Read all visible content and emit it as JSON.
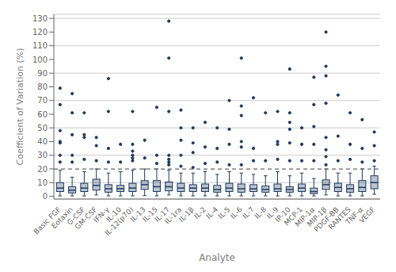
{
  "chart_data": {
    "type": "box",
    "xlabel": "Analyte",
    "ylabel": "Coefficient of Variation (%)",
    "categories": [
      "Basic FGF",
      "Eotaxin",
      "G-CSF",
      "GM-CSF",
      "IFN-γ",
      "IL-10",
      "IL-12(p70)",
      "IL-13",
      "IL-15",
      "IL-17",
      "IL-1ra",
      "IL-1β",
      "IL-2",
      "IL-4",
      "IL-5",
      "IL-6",
      "IL-7",
      "IL-8",
      "IL-9",
      "IP-10",
      "MCP-1",
      "MIP-1α",
      "MIP-1β",
      "PDGF-BB",
      "RANTES",
      "TNF-α",
      "VEGF"
    ],
    "q1": [
      3.5,
      2.5,
      3.5,
      4.5,
      3.0,
      3.5,
      3.5,
      5.0,
      3.5,
      4.0,
      3.5,
      3.5,
      3.5,
      3.0,
      3.5,
      3.0,
      3.5,
      3.0,
      3.5,
      3.0,
      3.5,
      2.0,
      5.0,
      3.5,
      3.0,
      3.5,
      5.5
    ],
    "median": [
      6.0,
      4.5,
      6.0,
      8.0,
      5.5,
      5.5,
      6.0,
      8.5,
      7.0,
      7.0,
      6.0,
      6.0,
      6.0,
      5.0,
      6.0,
      5.5,
      5.5,
      5.0,
      5.5,
      5.0,
      6.0,
      3.5,
      8.5,
      6.5,
      5.5,
      6.5,
      10.0
    ],
    "q3": [
      10.0,
      7.0,
      9.5,
      12.5,
      8.5,
      8.0,
      9.5,
      11.5,
      11.5,
      10.5,
      9.5,
      8.5,
      9.0,
      8.0,
      9.5,
      9.0,
      8.5,
      7.5,
      9.0,
      7.0,
      9.0,
      6.0,
      12.0,
      9.5,
      8.5,
      11.5,
      15.0
    ],
    "whislo": [
      0.3,
      0.3,
      0.3,
      1.0,
      0.3,
      0.3,
      0.3,
      0.5,
      0.3,
      1.0,
      0.3,
      0.3,
      0.3,
      0.3,
      0.3,
      0.3,
      0.3,
      0.3,
      0.3,
      0.3,
      0.3,
      0.3,
      1.0,
      0.3,
      0.3,
      0.3,
      1.5
    ],
    "whishi": [
      19.0,
      14.0,
      18.0,
      20.0,
      17.0,
      18.0,
      19.0,
      20.0,
      20.0,
      19.0,
      17.0,
      17.0,
      18.0,
      16.0,
      18.0,
      17.0,
      16.0,
      15.0,
      18.0,
      15.0,
      17.0,
      13.0,
      20.0,
      17.0,
      17.0,
      20.0,
      22.0
    ],
    "fliers": [
      [
        25,
        30,
        39,
        40,
        48,
        67,
        79
      ],
      [
        25,
        30,
        45,
        61,
        75
      ],
      [
        27,
        43,
        45,
        61
      ],
      [
        26,
        37,
        43
      ],
      [
        25,
        35,
        62,
        86
      ],
      [
        25,
        38
      ],
      [
        26,
        28,
        30,
        33,
        38,
        62
      ],
      [
        28,
        41
      ],
      [
        24,
        30,
        65
      ],
      [
        23,
        25,
        27,
        30,
        62,
        101,
        128
      ],
      [
        22,
        30,
        41,
        50,
        63
      ],
      [
        21,
        32,
        39,
        50
      ],
      [
        24,
        36,
        54
      ],
      [
        25,
        35,
        50
      ],
      [
        23,
        38,
        49,
        70
      ],
      [
        23,
        36,
        40,
        59,
        66,
        101
      ],
      [
        26,
        35,
        72
      ],
      [
        26,
        61
      ],
      [
        27,
        38,
        40,
        62
      ],
      [
        26,
        39,
        49,
        54,
        61,
        93
      ],
      [
        26,
        38,
        50
      ],
      [
        26,
        38,
        51,
        67,
        87
      ],
      [
        23,
        29,
        34,
        43,
        68,
        88,
        95,
        120
      ],
      [
        26,
        44,
        74
      ],
      [
        27,
        38,
        61
      ],
      [
        25,
        35,
        56
      ],
      [
        26,
        37,
        47
      ]
    ],
    "color": "#1e3a5f",
    "ylim": [
      -2,
      133
    ],
    "yticks": [
      0,
      10,
      20,
      30,
      40,
      50,
      60,
      70,
      80,
      90,
      100,
      110,
      120,
      130
    ],
    "grid": true,
    "reference_line": {
      "y": 20,
      "color": "#666666",
      "line_style": "dashed"
    }
  }
}
